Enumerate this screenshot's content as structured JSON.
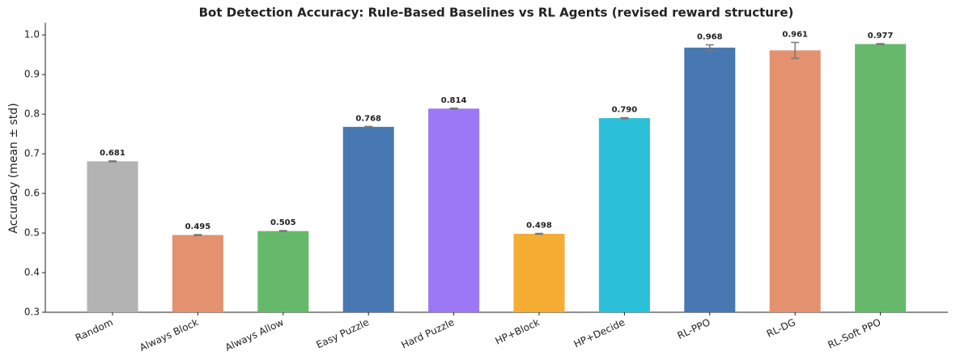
{
  "chart_data": {
    "type": "bar",
    "title": "Bot Detection Accuracy: Rule-Based Baselines vs RL Agents (revised reward structure)",
    "y_label": "Accuracy (mean ± std)",
    "categories": [
      "Random",
      "Always Block",
      "Always Allow",
      "Easy Puzzle",
      "Hard Puzzle",
      "HP+Block",
      "HP+Decide",
      "RL-PPO",
      "RL-DG",
      "RL-Soft PPO"
    ],
    "values": [
      0.681,
      0.495,
      0.505,
      0.768,
      0.814,
      0.498,
      0.79,
      0.968,
      0.961,
      0.977
    ],
    "value_labels": [
      "0.681",
      "0.495",
      "0.505",
      "0.768",
      "0.814",
      "0.498",
      "0.790",
      "0.968",
      "0.961",
      "0.977"
    ],
    "errors": [
      0.001,
      0.001,
      0.001,
      0.001,
      0.001,
      0.001,
      0.001,
      0.007,
      0.02,
      0.001
    ],
    "colors": [
      "#b3b3b3",
      "#e3916e",
      "#66b96b",
      "#4878b2",
      "#9b78f5",
      "#f5ac33",
      "#2cbfda",
      "#4878b2",
      "#e3916e",
      "#66b96b"
    ],
    "ylim": [
      0.3,
      1.031
    ],
    "yticks": [
      0.3,
      0.4,
      0.5,
      0.6,
      0.7,
      0.8,
      0.9,
      {
        "value": 1,
        "label": "1.0"
      }
    ]
  }
}
